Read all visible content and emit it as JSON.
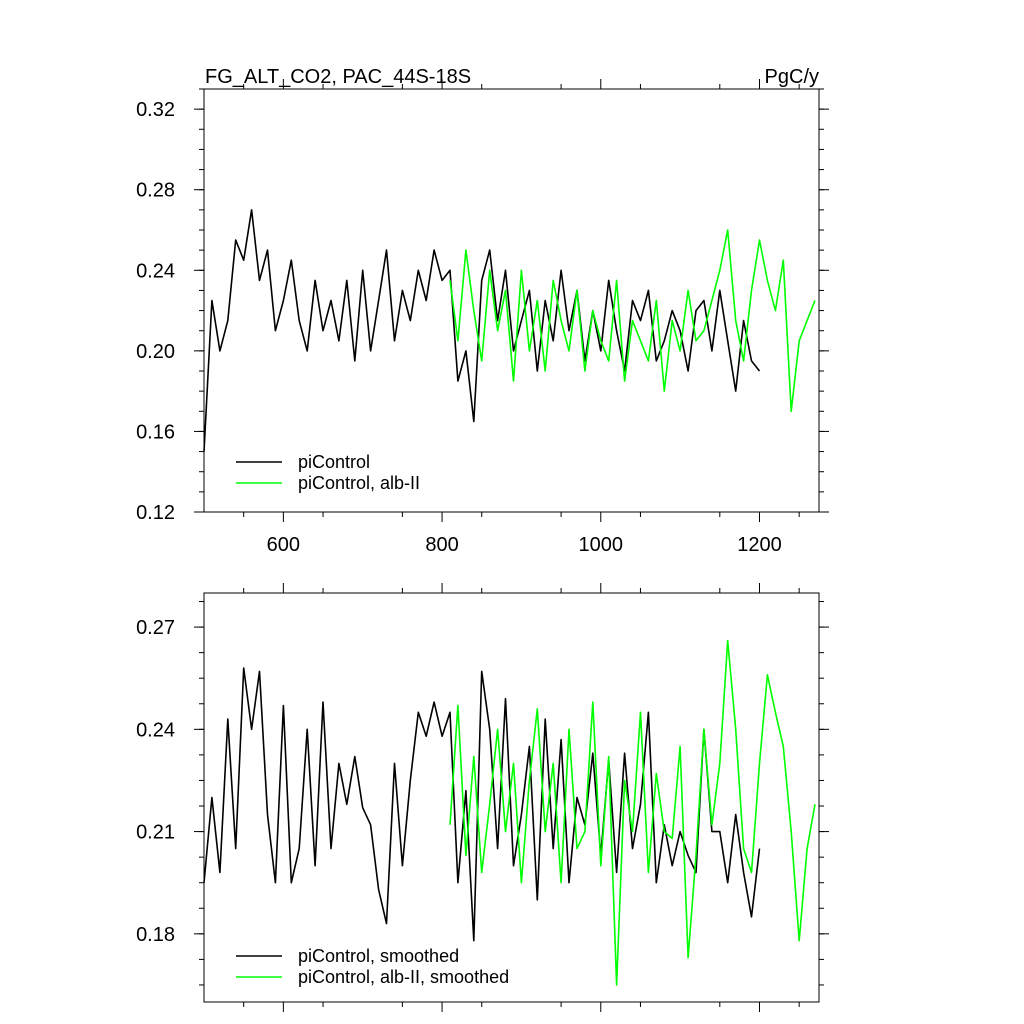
{
  "figure": {
    "title_left": "FG_ALT_CO2, PAC_44S-18S",
    "title_right": "PgC/y"
  },
  "colors": {
    "piControl": "#000000",
    "albII": "#00ff00",
    "frame": "#000000"
  },
  "chart_data": [
    {
      "type": "line",
      "title": "FG_ALT_CO2, PAC_44S-18S",
      "units": "PgC/y",
      "xlim": [
        500,
        1275
      ],
      "ylim": [
        0.12,
        0.33
      ],
      "xticks": [
        600,
        800,
        1000,
        1200
      ],
      "xticklabels": [
        "600",
        "800",
        "1000",
        "1200"
      ],
      "yticks": [
        0.12,
        0.16,
        0.2,
        0.24,
        0.28,
        0.32
      ],
      "yticklabels": [
        "0.12",
        "0.16",
        "0.20",
        "0.24",
        "0.28",
        "0.32"
      ],
      "legend": [
        "piControl",
        "piControl, alb-II"
      ],
      "legend_position": "bottom-left",
      "grid": false,
      "series": [
        {
          "name": "piControl",
          "color": "#000000",
          "x": [
            500,
            510,
            520,
            530,
            540,
            550,
            560,
            570,
            580,
            590,
            600,
            610,
            620,
            630,
            640,
            650,
            660,
            670,
            680,
            690,
            700,
            710,
            720,
            730,
            740,
            750,
            760,
            770,
            780,
            790,
            800,
            810,
            820,
            830,
            840,
            850,
            860,
            870,
            880,
            890,
            900,
            910,
            920,
            930,
            940,
            950,
            960,
            970,
            980,
            990,
            1000,
            1010,
            1020,
            1030,
            1040,
            1050,
            1060,
            1070,
            1080,
            1090,
            1100,
            1110,
            1120,
            1130,
            1140,
            1150,
            1160,
            1170,
            1180,
            1190,
            1200
          ],
          "y": [
            0.15,
            0.225,
            0.2,
            0.215,
            0.255,
            0.245,
            0.27,
            0.235,
            0.25,
            0.21,
            0.225,
            0.245,
            0.215,
            0.2,
            0.235,
            0.21,
            0.225,
            0.205,
            0.235,
            0.195,
            0.24,
            0.2,
            0.225,
            0.25,
            0.205,
            0.23,
            0.215,
            0.24,
            0.225,
            0.25,
            0.235,
            0.24,
            0.185,
            0.2,
            0.165,
            0.235,
            0.25,
            0.215,
            0.24,
            0.2,
            0.215,
            0.23,
            0.19,
            0.225,
            0.205,
            0.24,
            0.21,
            0.23,
            0.195,
            0.22,
            0.2,
            0.235,
            0.21,
            0.19,
            0.225,
            0.215,
            0.23,
            0.195,
            0.205,
            0.22,
            0.21,
            0.19,
            0.22,
            0.225,
            0.2,
            0.23,
            0.205,
            0.18,
            0.215,
            0.195,
            0.19
          ]
        },
        {
          "name": "piControl, alb-II",
          "color": "#00ff00",
          "x": [
            810,
            820,
            830,
            840,
            850,
            860,
            870,
            880,
            890,
            900,
            910,
            920,
            930,
            940,
            950,
            960,
            970,
            980,
            990,
            1000,
            1010,
            1020,
            1030,
            1040,
            1050,
            1060,
            1070,
            1080,
            1090,
            1100,
            1110,
            1120,
            1130,
            1140,
            1150,
            1160,
            1170,
            1180,
            1190,
            1200,
            1210,
            1220,
            1230,
            1240,
            1250,
            1260,
            1270
          ],
          "y": [
            0.235,
            0.205,
            0.25,
            0.22,
            0.195,
            0.24,
            0.21,
            0.23,
            0.185,
            0.24,
            0.2,
            0.225,
            0.19,
            0.235,
            0.215,
            0.2,
            0.23,
            0.19,
            0.22,
            0.205,
            0.195,
            0.235,
            0.185,
            0.215,
            0.205,
            0.195,
            0.225,
            0.18,
            0.215,
            0.2,
            0.23,
            0.205,
            0.21,
            0.225,
            0.24,
            0.26,
            0.215,
            0.195,
            0.23,
            0.255,
            0.235,
            0.22,
            0.245,
            0.17,
            0.205,
            0.215,
            0.225
          ]
        }
      ]
    },
    {
      "type": "line",
      "xlim": [
        500,
        1275
      ],
      "ylim": [
        0.16,
        0.28
      ],
      "xticks": [
        600,
        800,
        1000,
        1200
      ],
      "yticks": [
        0.18,
        0.21,
        0.24,
        0.27
      ],
      "yticklabels": [
        "0.18",
        "0.21",
        "0.24",
        "0.27"
      ],
      "legend": [
        "piControl, smoothed",
        "piControl, alb-II, smoothed"
      ],
      "legend_position": "bottom-left",
      "grid": false,
      "series": [
        {
          "name": "piControl, smoothed",
          "color": "#000000",
          "x": [
            500,
            510,
            520,
            530,
            540,
            550,
            560,
            570,
            580,
            590,
            600,
            610,
            620,
            630,
            640,
            650,
            660,
            670,
            680,
            690,
            700,
            710,
            720,
            730,
            740,
            750,
            760,
            770,
            780,
            790,
            800,
            810,
            820,
            830,
            840,
            850,
            860,
            870,
            880,
            890,
            900,
            910,
            920,
            930,
            940,
            950,
            960,
            970,
            980,
            990,
            1000,
            1010,
            1020,
            1030,
            1040,
            1050,
            1060,
            1070,
            1080,
            1090,
            1100,
            1110,
            1120,
            1130,
            1140,
            1150,
            1160,
            1170,
            1180,
            1190,
            1200
          ],
          "y": [
            0.195,
            0.22,
            0.198,
            0.243,
            0.205,
            0.258,
            0.24,
            0.257,
            0.215,
            0.195,
            0.247,
            0.195,
            0.205,
            0.24,
            0.2,
            0.248,
            0.205,
            0.23,
            0.218,
            0.232,
            0.217,
            0.212,
            0.193,
            0.183,
            0.23,
            0.2,
            0.225,
            0.245,
            0.238,
            0.248,
            0.238,
            0.245,
            0.195,
            0.222,
            0.178,
            0.257,
            0.24,
            0.205,
            0.249,
            0.2,
            0.215,
            0.235,
            0.19,
            0.243,
            0.205,
            0.237,
            0.195,
            0.22,
            0.212,
            0.233,
            0.203,
            0.231,
            0.198,
            0.233,
            0.205,
            0.218,
            0.245,
            0.195,
            0.212,
            0.2,
            0.21,
            0.203,
            0.198,
            0.24,
            0.21,
            0.21,
            0.195,
            0.215,
            0.198,
            0.185,
            0.205
          ]
        },
        {
          "name": "piControl, alb-II, smoothed",
          "color": "#00ff00",
          "x": [
            810,
            820,
            830,
            840,
            850,
            860,
            870,
            880,
            890,
            900,
            910,
            920,
            930,
            940,
            950,
            960,
            970,
            980,
            990,
            1000,
            1010,
            1020,
            1030,
            1040,
            1050,
            1060,
            1070,
            1080,
            1090,
            1100,
            1110,
            1120,
            1130,
            1140,
            1150,
            1160,
            1170,
            1180,
            1190,
            1200,
            1210,
            1220,
            1230,
            1240,
            1250,
            1260,
            1270
          ],
          "y": [
            0.212,
            0.247,
            0.203,
            0.232,
            0.198,
            0.218,
            0.24,
            0.21,
            0.23,
            0.195,
            0.225,
            0.246,
            0.21,
            0.23,
            0.195,
            0.24,
            0.205,
            0.21,
            0.248,
            0.2,
            0.232,
            0.165,
            0.225,
            0.21,
            0.245,
            0.198,
            0.227,
            0.21,
            0.208,
            0.235,
            0.173,
            0.203,
            0.24,
            0.212,
            0.23,
            0.266,
            0.24,
            0.205,
            0.198,
            0.23,
            0.256,
            0.245,
            0.235,
            0.21,
            0.178,
            0.205,
            0.218
          ]
        }
      ]
    }
  ]
}
